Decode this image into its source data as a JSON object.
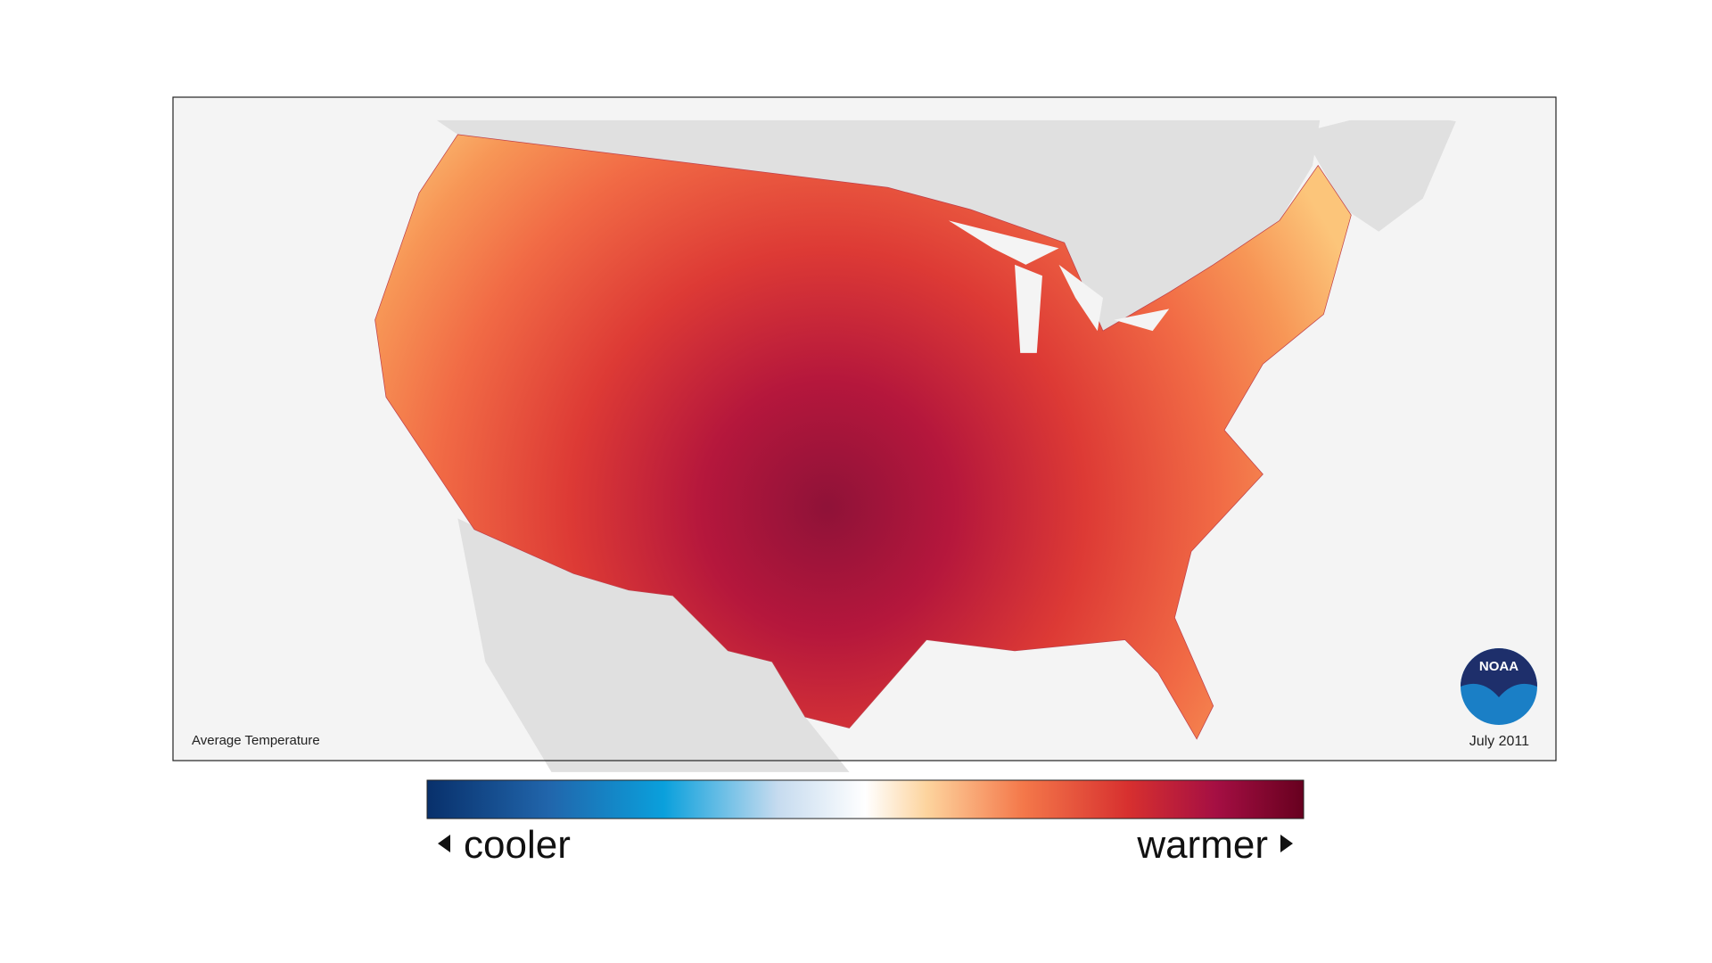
{
  "map": {
    "title": "Average Temperature",
    "date": "July 2011",
    "logo": "NOAA",
    "legend": {
      "low": "cooler",
      "high": "warmer"
    }
  }
}
